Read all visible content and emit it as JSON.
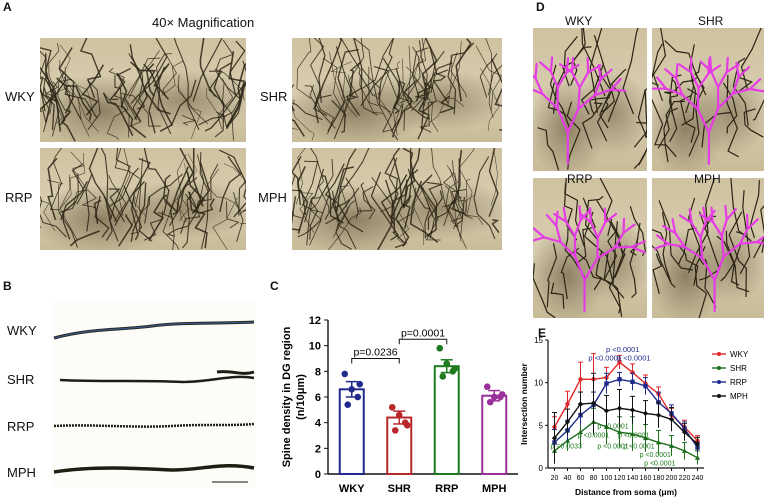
{
  "panels": {
    "A": {
      "letter": "A",
      "title": "40× Magnification",
      "groups": [
        "WKY",
        "SHR",
        "RRP",
        "MPH"
      ]
    },
    "B": {
      "letter": "B",
      "groups": [
        "WKY",
        "SHR",
        "RRP",
        "MPH"
      ]
    },
    "C": {
      "letter": "C"
    },
    "D": {
      "letter": "D",
      "groups": [
        "WKY",
        "SHR",
        "RRP",
        "MPH"
      ]
    },
    "E": {
      "letter": "E"
    }
  },
  "colors": {
    "WKY": "#e0282a",
    "SHR": "#1e6e1e",
    "RRP": "#1f2a8c",
    "MPH": "#111111",
    "trace": "#e63ce6"
  },
  "chart_data": [
    {
      "id": "C",
      "type": "bar",
      "title": "",
      "ylabel": "Spine density in DG region\n(n/10μm)",
      "ylabel_lines": [
        "Spine density in DG region",
        "(n/10μm)"
      ],
      "categories": [
        "WKY",
        "SHR",
        "RRP",
        "MPH"
      ],
      "values": [
        6.6,
        4.4,
        8.4,
        6.1
      ],
      "errors": [
        0.6,
        0.5,
        0.5,
        0.4
      ],
      "bar_colors": [
        "#1f2a8c",
        "#b8282a",
        "#1e7a1e",
        "#9b2f9b"
      ],
      "points": [
        [
          7.8,
          6.0,
          5.4,
          7.0,
          6.6
        ],
        [
          5.2,
          4.0,
          3.4,
          3.8,
          4.6
        ],
        [
          9.8,
          8.0,
          7.6,
          8.2,
          8.6
        ],
        [
          6.8,
          6.0,
          5.6,
          6.2,
          6.0
        ]
      ],
      "ylim": [
        0,
        12
      ],
      "yticks": [
        0,
        2,
        4,
        6,
        8,
        10,
        12
      ],
      "annotations": [
        {
          "from": "WKY",
          "to": "SHR",
          "text": "p=0.0236",
          "y": 9.0
        },
        {
          "from": "SHR",
          "to": "RRP",
          "text": "p=0.0001",
          "y": 10.5
        }
      ]
    },
    {
      "id": "E",
      "type": "line",
      "xlabel": "Distance from soma (μm)",
      "ylabel": "Intersection number",
      "xlim": [
        20,
        240
      ],
      "ylim": [
        0,
        15
      ],
      "x": [
        20,
        40,
        60,
        80,
        100,
        120,
        140,
        160,
        180,
        200,
        220,
        240
      ],
      "yticks": [
        0,
        5,
        10,
        15
      ],
      "series": [
        {
          "name": "WKY",
          "values": [
            4.8,
            7.5,
            10.4,
            10.4,
            10.6,
            12.4,
            11.2,
            9.9,
            8.7,
            6.2,
            4.8,
            3.2
          ],
          "errors": [
            1.2,
            1.5,
            2.0,
            3.0,
            1.2,
            0.8,
            1.0,
            1.0,
            0.8,
            0.8,
            0.8,
            0.6
          ]
        },
        {
          "name": "SHR",
          "values": [
            2.0,
            3.2,
            4.2,
            5.4,
            4.8,
            4.2,
            4.0,
            3.5,
            3.0,
            2.6,
            2.0,
            1.2
          ],
          "errors": [
            0.8,
            1.2,
            1.8,
            1.6,
            2.0,
            1.8,
            2.0,
            1.6,
            1.4,
            1.2,
            1.0,
            0.8
          ]
        },
        {
          "name": "RRP",
          "values": [
            3.0,
            4.4,
            6.2,
            7.4,
            9.9,
            10.4,
            10.1,
            9.6,
            7.7,
            6.4,
            4.6,
            2.4
          ],
          "errors": [
            1.5,
            1.2,
            1.2,
            1.5,
            1.2,
            0.8,
            1.0,
            1.0,
            1.2,
            1.0,
            0.8,
            0.6
          ]
        },
        {
          "name": "MPH",
          "values": [
            3.5,
            5.4,
            7.5,
            7.6,
            6.7,
            7.0,
            6.8,
            6.4,
            6.2,
            5.7,
            4.2,
            2.8
          ],
          "errors": [
            3.0,
            1.5,
            1.4,
            3.5,
            1.8,
            2.2,
            1.6,
            1.5,
            1.5,
            1.4,
            1.0,
            0.8
          ]
        }
      ],
      "legend": [
        "WKY",
        "SHR",
        "RRP",
        "MPH"
      ],
      "legend_position": "right",
      "annotations_blue": [
        {
          "text": "p <0.0001",
          "x": 125,
          "y": 13.6
        },
        {
          "text": "p <0.0001",
          "x": 98,
          "y": 12.6
        },
        {
          "text": "p <0.0001",
          "x": 142,
          "y": 12.6
        }
      ],
      "annotations_green": [
        {
          "text": "p <0.0001",
          "x": 110,
          "y": 4.6
        },
        {
          "text": "p <0.0001",
          "x": 80,
          "y": 3.6
        },
        {
          "text": "p <0.0001",
          "x": 142,
          "y": 3.6
        },
        {
          "text": "p =0.0033",
          "x": 38,
          "y": 2.3
        },
        {
          "text": "p <0.0001",
          "x": 110,
          "y": 2.3
        },
        {
          "text": "p <0.0001",
          "x": 150,
          "y": 2.3
        },
        {
          "text": "p <0.0001",
          "x": 175,
          "y": 1.3
        },
        {
          "text": "p <0.0001",
          "x": 182,
          "y": 0.3
        }
      ]
    }
  ]
}
